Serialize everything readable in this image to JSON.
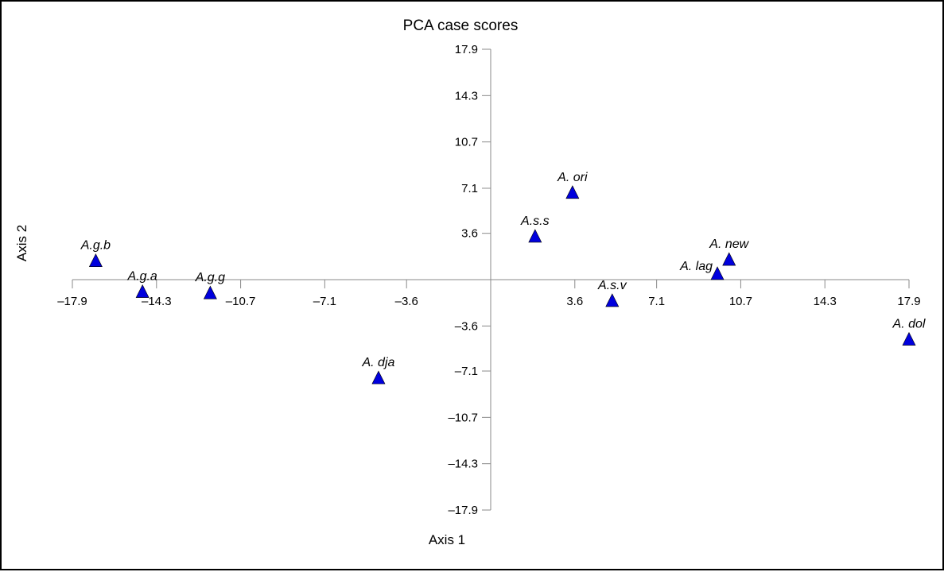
{
  "chart_data": {
    "type": "scatter",
    "title": "PCA case scores",
    "xlabel": "Axis 1",
    "ylabel": "Axis 2",
    "xlim": [
      -17.9,
      17.9
    ],
    "ylim": [
      -17.9,
      17.9
    ],
    "x_ticks": [
      "–17.9",
      "–14.3",
      "–10.7",
      "–7.1",
      "–3.6",
      "3.6",
      "7.1",
      "10.7",
      "14.3",
      "17.9"
    ],
    "x_tick_values": [
      -17.9,
      -14.3,
      -10.7,
      -7.1,
      -3.6,
      3.6,
      7.1,
      10.7,
      14.3,
      17.9
    ],
    "y_ticks": [
      "17.9",
      "14.3",
      "10.7",
      "7.1",
      "3.6",
      "–3.6",
      "–7.1",
      "–10.7",
      "–14.3",
      "–17.9"
    ],
    "y_tick_values": [
      17.9,
      14.3,
      10.7,
      7.1,
      3.6,
      -3.6,
      -7.1,
      -10.7,
      -14.3,
      -17.9
    ],
    "grid": false,
    "marker": "triangle",
    "marker_color": "#0000dd",
    "points": [
      {
        "label": "A.g.b",
        "x": -16.9,
        "y": 1.5
      },
      {
        "label": "A.g.a",
        "x": -14.9,
        "y": -0.9
      },
      {
        "label": "A.g.g",
        "x": -12.0,
        "y": -1.0
      },
      {
        "label": "A. dja",
        "x": -4.8,
        "y": -7.6
      },
      {
        "label": "A.s.s",
        "x": 1.9,
        "y": 3.4
      },
      {
        "label": "A. ori",
        "x": 3.5,
        "y": 6.8
      },
      {
        "label": "A.s.v",
        "x": 5.2,
        "y": -1.6
      },
      {
        "label": "A. lag",
        "x": 9.7,
        "y": 0.5
      },
      {
        "label": "A. new",
        "x": 10.2,
        "y": 1.6
      },
      {
        "label": "A. dol",
        "x": 17.9,
        "y": -4.6
      }
    ]
  }
}
